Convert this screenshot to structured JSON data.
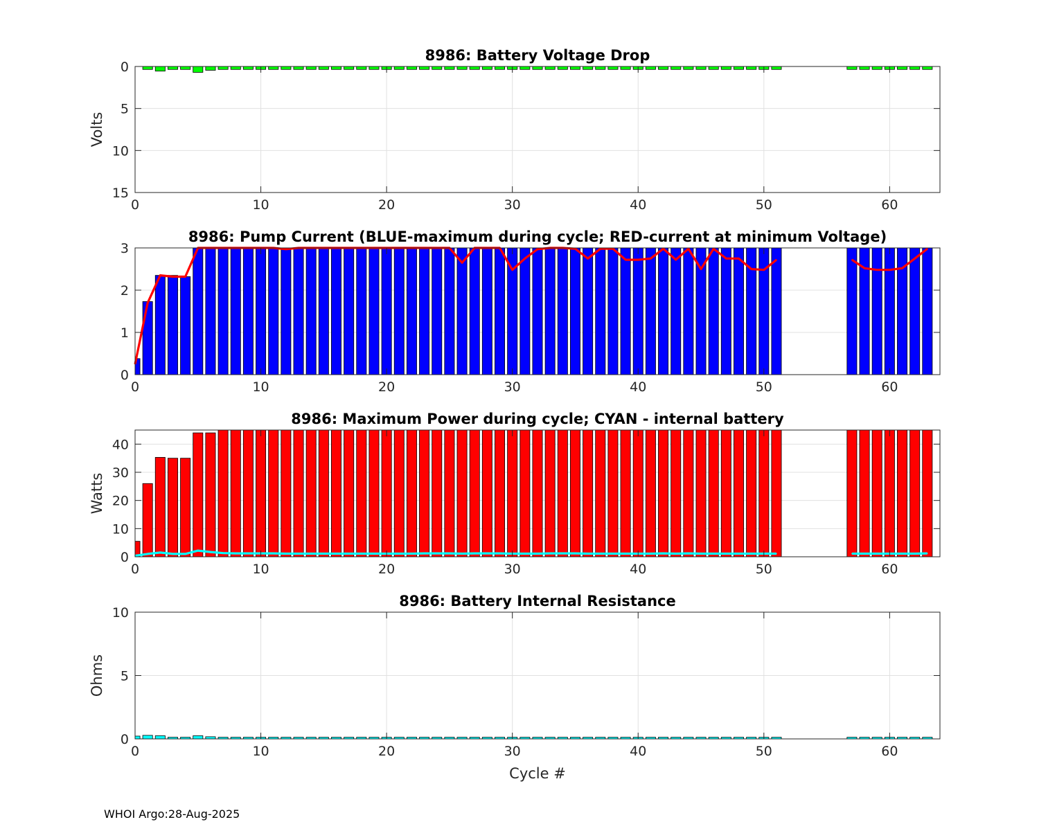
{
  "footer": "WHOI Argo:28-Aug-2025",
  "colors": {
    "voltage_bar": "#00ff00",
    "current_bar": "#0000ff",
    "current_line": "#ff0000",
    "power_bar": "#ff0000",
    "power_line": "#00ffff",
    "resistance_bar": "#00ffff"
  },
  "chart_data": [
    {
      "type": "bar",
      "title": "8986: Battery Voltage Drop",
      "xlabel": "",
      "ylabel": "Volts",
      "xlim": [
        0,
        64
      ],
      "ylim": [
        0,
        15
      ],
      "y_reversed": true,
      "xticks": [
        "0",
        "10",
        "20",
        "30",
        "40",
        "50",
        "60"
      ],
      "yticks": [
        "0",
        "5",
        "10",
        "15"
      ],
      "grid": true,
      "series": [
        {
          "kind": "bar",
          "color": "#00ff00",
          "x": [
            1,
            2,
            3,
            4,
            5,
            6,
            7,
            8,
            9,
            10,
            11,
            12,
            13,
            14,
            15,
            16,
            17,
            18,
            19,
            20,
            21,
            22,
            23,
            24,
            25,
            26,
            27,
            28,
            29,
            30,
            31,
            32,
            33,
            34,
            35,
            36,
            37,
            38,
            39,
            40,
            41,
            42,
            43,
            44,
            45,
            46,
            47,
            48,
            49,
            50,
            51,
            57,
            58,
            59,
            60,
            61,
            62,
            63
          ],
          "values": [
            0.35,
            0.55,
            0.35,
            0.35,
            0.7,
            0.45,
            0.35,
            0.35,
            0.35,
            0.35,
            0.35,
            0.35,
            0.35,
            0.35,
            0.35,
            0.35,
            0.35,
            0.35,
            0.35,
            0.35,
            0.35,
            0.35,
            0.35,
            0.35,
            0.35,
            0.35,
            0.35,
            0.35,
            0.35,
            0.35,
            0.35,
            0.35,
            0.35,
            0.35,
            0.35,
            0.35,
            0.35,
            0.35,
            0.35,
            0.35,
            0.35,
            0.35,
            0.35,
            0.35,
            0.35,
            0.35,
            0.35,
            0.35,
            0.35,
            0.35,
            0.35,
            0.35,
            0.35,
            0.35,
            0.35,
            0.35,
            0.35,
            0.35
          ]
        }
      ]
    },
    {
      "type": "bar",
      "title": "8986: Pump Current (BLUE-maximum during cycle; RED-current at minimum Voltage)",
      "xlabel": "",
      "ylabel": "",
      "xlim": [
        0,
        64
      ],
      "ylim": [
        0,
        3
      ],
      "xticks": [
        "0",
        "10",
        "20",
        "30",
        "40",
        "50",
        "60"
      ],
      "yticks": [
        "0",
        "1",
        "2",
        "3"
      ],
      "grid": true,
      "series": [
        {
          "kind": "bar",
          "color": "#0000ff",
          "x": [
            0,
            1,
            2,
            3,
            4,
            5,
            6,
            7,
            8,
            9,
            10,
            11,
            12,
            13,
            14,
            15,
            16,
            17,
            18,
            19,
            20,
            21,
            22,
            23,
            24,
            25,
            26,
            27,
            28,
            29,
            30,
            31,
            32,
            33,
            34,
            35,
            36,
            37,
            38,
            39,
            40,
            41,
            42,
            43,
            44,
            45,
            46,
            47,
            48,
            49,
            50,
            51,
            57,
            58,
            59,
            60,
            61,
            62,
            63
          ],
          "values": [
            0.38,
            1.73,
            2.35,
            2.35,
            2.32,
            3,
            3,
            3,
            3,
            3,
            3,
            3,
            3,
            3,
            3,
            3,
            3,
            3,
            3,
            3,
            3,
            3,
            3,
            3,
            3,
            3,
            3,
            3,
            3,
            3,
            3,
            3,
            3,
            3,
            3,
            3,
            3,
            3,
            3,
            3,
            3,
            3,
            3,
            3,
            3,
            3,
            3,
            3,
            3,
            3,
            3,
            3,
            3,
            3,
            3,
            3,
            3,
            3,
            3
          ]
        },
        {
          "kind": "line",
          "color": "#ff0000",
          "x": [
            0,
            1,
            2,
            3,
            4,
            5,
            6,
            7,
            8,
            9,
            10,
            11,
            12,
            13,
            14,
            15,
            16,
            17,
            18,
            19,
            20,
            21,
            22,
            23,
            24,
            25,
            26,
            27,
            28,
            29,
            30,
            31,
            32,
            33,
            34,
            35,
            36,
            37,
            38,
            39,
            40,
            41,
            42,
            43,
            44,
            45,
            46,
            47,
            48,
            49,
            50,
            51
          ],
          "values": [
            0.25,
            1.7,
            2.35,
            2.32,
            2.32,
            3,
            3,
            3,
            3,
            3,
            3,
            3,
            2.97,
            3,
            3,
            3,
            3,
            3,
            3,
            3,
            3,
            3,
            3,
            3,
            3,
            3,
            2.65,
            3,
            3,
            3,
            2.48,
            2.75,
            2.97,
            3,
            3,
            2.98,
            2.75,
            2.98,
            2.98,
            2.72,
            2.72,
            2.75,
            2.98,
            2.72,
            2.98,
            2.5,
            2.98,
            2.75,
            2.75,
            2.5,
            2.48,
            2.72
          ]
        },
        {
          "kind": "line",
          "color": "#ff0000",
          "x": [
            57,
            58,
            59,
            60,
            61,
            62,
            63
          ],
          "values": [
            2.72,
            2.52,
            2.48,
            2.48,
            2.52,
            2.75,
            2.98
          ]
        }
      ]
    },
    {
      "type": "bar",
      "title": "8986: Maximum Power during cycle; CYAN - internal battery",
      "xlabel": "",
      "ylabel": "Watts",
      "xlim": [
        0,
        64
      ],
      "ylim": [
        0,
        45
      ],
      "xticks": [
        "0",
        "10",
        "20",
        "30",
        "40",
        "50",
        "60"
      ],
      "yticks": [
        "0",
        "10",
        "20",
        "30",
        "40"
      ],
      "grid": true,
      "series": [
        {
          "kind": "bar",
          "color": "#ff0000",
          "x": [
            0,
            1,
            2,
            3,
            4,
            5,
            6,
            7,
            8,
            9,
            10,
            11,
            12,
            13,
            14,
            15,
            16,
            17,
            18,
            19,
            20,
            21,
            22,
            23,
            24,
            25,
            26,
            27,
            28,
            29,
            30,
            31,
            32,
            33,
            34,
            35,
            36,
            37,
            38,
            39,
            40,
            41,
            42,
            43,
            44,
            45,
            46,
            47,
            48,
            49,
            50,
            51,
            57,
            58,
            59,
            60,
            61,
            62,
            63
          ],
          "values": [
            5.5,
            26,
            35.3,
            35,
            35,
            44,
            44,
            45,
            45,
            45,
            45,
            45,
            45,
            45,
            45,
            45,
            45,
            45,
            45,
            45,
            45,
            45,
            45,
            45,
            45,
            45,
            45,
            45,
            45,
            45,
            45,
            45,
            45,
            45,
            45,
            45,
            45,
            45,
            45,
            45,
            45,
            45,
            45,
            45,
            45,
            45,
            45,
            45,
            45,
            45,
            45,
            45,
            45,
            45,
            45,
            45,
            45,
            45,
            45
          ]
        },
        {
          "kind": "line",
          "color": "#00ffff",
          "x": [
            0,
            1,
            2,
            3,
            4,
            5,
            6,
            7,
            8,
            9,
            10,
            11,
            12,
            13,
            14,
            15,
            16,
            17,
            18,
            19,
            20,
            21,
            22,
            23,
            24,
            25,
            26,
            27,
            28,
            29,
            30,
            31,
            32,
            33,
            34,
            35,
            36,
            37,
            38,
            39,
            40,
            41,
            42,
            43,
            44,
            45,
            46,
            47,
            48,
            49,
            50,
            51
          ],
          "values": [
            0.4,
            1,
            1.5,
            1,
            1,
            2.2,
            1.7,
            1.3,
            1.2,
            1.2,
            1.2,
            1.2,
            1.1,
            1.1,
            1.1,
            1.1,
            1.1,
            1.1,
            1.1,
            1.1,
            1.1,
            1.1,
            1.1,
            1.2,
            1.2,
            1.2,
            1.1,
            1.2,
            1.2,
            1.2,
            1.1,
            1.1,
            1.1,
            1.2,
            1.2,
            1.2,
            1.1,
            1.1,
            1.1,
            1.1,
            1.1,
            1.1,
            1.2,
            1.1,
            1.2,
            1.1,
            1.1,
            1.1,
            1.1,
            1.1,
            1.1,
            1.1
          ]
        },
        {
          "kind": "line",
          "color": "#00ffff",
          "x": [
            57,
            58,
            59,
            60,
            61,
            62,
            63
          ],
          "values": [
            1.1,
            1.1,
            1.1,
            1.1,
            1.1,
            1.1,
            1.2
          ]
        }
      ]
    },
    {
      "type": "bar",
      "title": "8986: Battery Internal Resistance",
      "xlabel": "Cycle #",
      "ylabel": "Ohms",
      "xlim": [
        0,
        64
      ],
      "ylim": [
        0,
        10
      ],
      "xticks": [
        "0",
        "10",
        "20",
        "30",
        "40",
        "50",
        "60"
      ],
      "yticks": [
        "0",
        "5",
        "10"
      ],
      "grid": true,
      "series": [
        {
          "kind": "bar",
          "color": "#00ffff",
          "x": [
            0,
            1,
            2,
            3,
            4,
            5,
            6,
            7,
            8,
            9,
            10,
            11,
            12,
            13,
            14,
            15,
            16,
            17,
            18,
            19,
            20,
            21,
            22,
            23,
            24,
            25,
            26,
            27,
            28,
            29,
            30,
            31,
            32,
            33,
            34,
            35,
            36,
            37,
            38,
            39,
            40,
            41,
            42,
            43,
            44,
            45,
            46,
            47,
            48,
            49,
            50,
            51,
            57,
            58,
            59,
            60,
            61,
            62,
            63
          ],
          "values": [
            0.22,
            0.28,
            0.25,
            0.13,
            0.13,
            0.25,
            0.17,
            0.13,
            0.13,
            0.13,
            0.13,
            0.13,
            0.13,
            0.13,
            0.13,
            0.13,
            0.13,
            0.13,
            0.13,
            0.13,
            0.13,
            0.13,
            0.13,
            0.13,
            0.13,
            0.13,
            0.13,
            0.13,
            0.13,
            0.13,
            0.13,
            0.13,
            0.13,
            0.13,
            0.13,
            0.13,
            0.13,
            0.13,
            0.13,
            0.13,
            0.13,
            0.13,
            0.13,
            0.13,
            0.13,
            0.13,
            0.13,
            0.13,
            0.13,
            0.13,
            0.13,
            0.13,
            0.13,
            0.13,
            0.13,
            0.13,
            0.13,
            0.13,
            0.13
          ]
        }
      ]
    }
  ]
}
